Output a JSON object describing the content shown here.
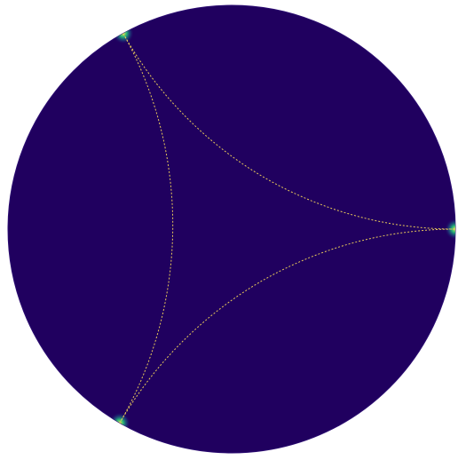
{
  "figure": {
    "kind": "hyperbolic disk plot with ideal triangle",
    "colors": {
      "background": "#ffffff",
      "disk_fill": "#20005f",
      "disk_edge": "#2a0a70",
      "curve": "#e8c85a",
      "hotspot_core": "#d9f25a",
      "hotspot_mid": "#22c07a",
      "hotspot_outer": "#1a5f8a"
    },
    "vertices": [
      {
        "name": "top-left-vertex",
        "angle_deg": 119
      },
      {
        "name": "right-vertex",
        "angle_deg": 0
      },
      {
        "name": "bottom-left-vertex",
        "angle_deg": -120
      }
    ],
    "curve_style": "dashed"
  }
}
